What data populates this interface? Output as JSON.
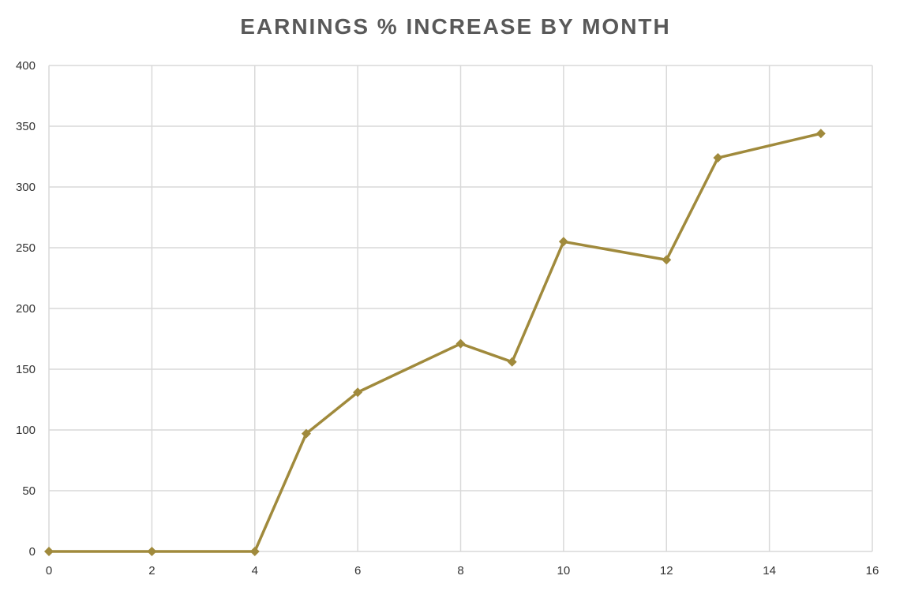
{
  "chart_data": {
    "type": "scatter",
    "title": "EARNINGS % INCREASE BY MONTH",
    "xlabel": "",
    "ylabel": "",
    "xlim": [
      0,
      16
    ],
    "ylim": [
      0,
      400
    ],
    "xticks": [
      "0",
      "2",
      "4",
      "6",
      "8",
      "10",
      "12",
      "14",
      "16"
    ],
    "yticks": [
      "0",
      "50",
      "100",
      "150",
      "200",
      "250",
      "300",
      "350",
      "400"
    ],
    "grid": true,
    "legend": "none",
    "series": [
      {
        "color": "#A08A3C",
        "marker": "diamond",
        "lines": true,
        "x": [
          0,
          2,
          4,
          5,
          6,
          8,
          9,
          10,
          12,
          13,
          15
        ],
        "y": [
          0,
          0,
          0,
          97,
          131,
          171,
          156,
          255,
          240,
          324,
          344
        ]
      }
    ]
  }
}
